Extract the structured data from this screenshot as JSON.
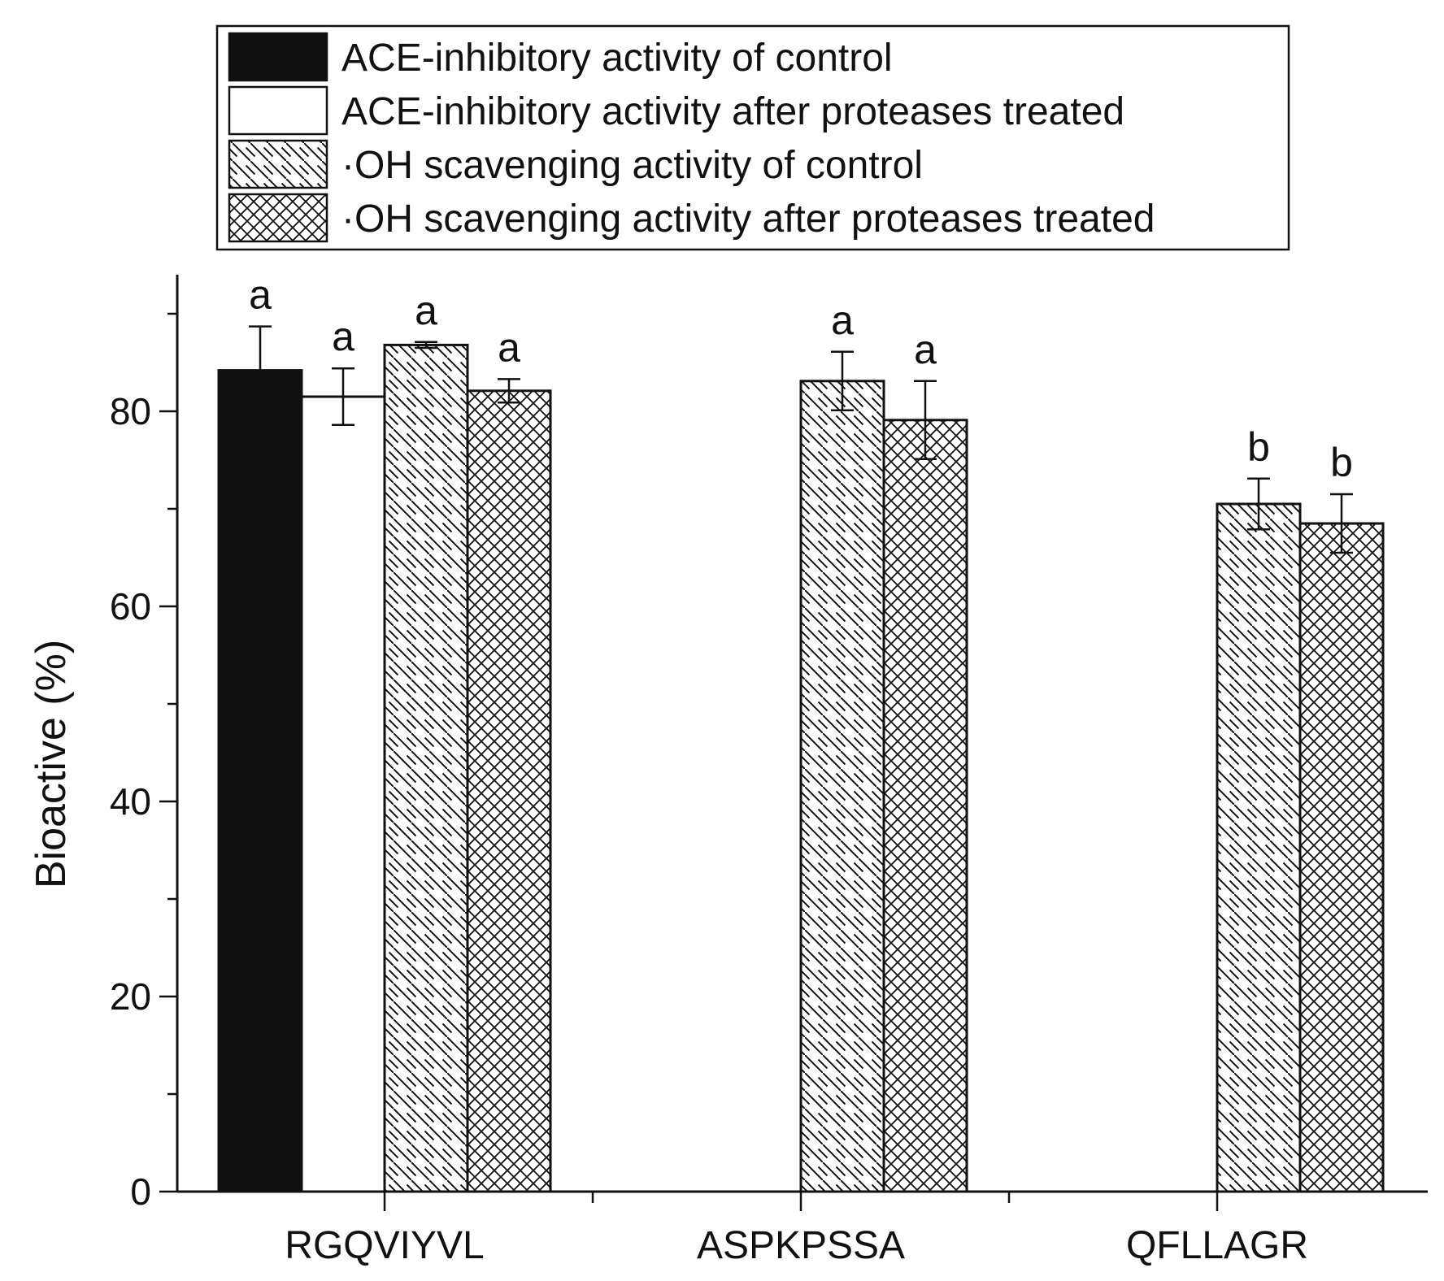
{
  "chart_data": {
    "type": "bar",
    "title": "",
    "xlabel": "",
    "ylabel": "Bioactive (%)",
    "ylim": [
      0,
      94
    ],
    "yticks": [
      0,
      20,
      40,
      60,
      80
    ],
    "categories": [
      "RGQVIYVL",
      "ASPKPSSA",
      "QFLLAGR"
    ],
    "series": [
      {
        "name": "ACE-inhibitory activity of control",
        "pattern": "solid",
        "values": [
          84.2,
          null,
          null
        ],
        "errors": [
          4.5,
          null,
          null
        ],
        "labels": [
          "a",
          null,
          null
        ]
      },
      {
        "name": "ACE-inhibitory activity after proteases treated",
        "pattern": "open",
        "values": [
          81.5,
          null,
          null
        ],
        "errors": [
          2.9,
          null,
          null
        ],
        "labels": [
          "a",
          null,
          null
        ]
      },
      {
        "name": "·OH scavenging activity of control",
        "pattern": "diagonal",
        "values": [
          86.8,
          83.1,
          70.5
        ],
        "errors": [
          0.3,
          3.0,
          2.6
        ],
        "labels": [
          "a",
          "a",
          "b"
        ]
      },
      {
        "name": "·OH scavenging activity after proteases treated",
        "pattern": "crosshatch",
        "values": [
          82.1,
          79.1,
          68.5
        ],
        "errors": [
          1.2,
          4.0,
          3.0
        ],
        "labels": [
          "a",
          "a",
          "b"
        ]
      }
    ],
    "legend_position": "top"
  },
  "colors": {
    "ink": "#111111",
    "background": "#ffffff"
  }
}
